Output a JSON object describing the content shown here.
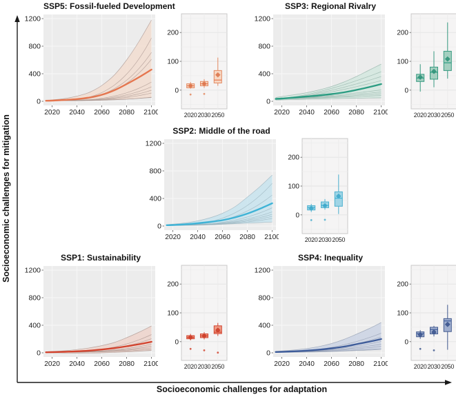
{
  "figure": {
    "y_axis_label": "Socioeconomic challenges for mitigation",
    "x_axis_label": "Socioeconomic challenges for adaptation"
  },
  "chart_data": [
    {
      "id": "ssp5",
      "title": "SSP5: Fossil-fueled Development",
      "position": "top-left",
      "colors": {
        "line": "#E5764F",
        "band": "#F2DDD0",
        "box_fill": "#F7D8C4",
        "box_stroke": "#E3885F",
        "run": "#A5928C",
        "mean": "#D96F45"
      },
      "line_chart": {
        "type": "line",
        "x": [
          2015,
          2020,
          2030,
          2040,
          2050,
          2060,
          2070,
          2080,
          2090,
          2100
        ],
        "median": [
          8,
          10,
          20,
          32,
          55,
          95,
          160,
          250,
          350,
          460
        ],
        "band_upper": [
          12,
          20,
          40,
          75,
          130,
          230,
          380,
          600,
          870,
          1180
        ],
        "band_lower": [
          5,
          6,
          8,
          10,
          14,
          18,
          24,
          32,
          42,
          55
        ],
        "runs_2100_endpoints": [
          920,
          710,
          610,
          280,
          210,
          160,
          120,
          60
        ],
        "run_start": 8,
        "shape_power": 3.2,
        "ylim": [
          -60,
          1260
        ],
        "yticks": [
          0,
          400,
          800,
          1200
        ],
        "xticks": [
          2020,
          2040,
          2060,
          2080,
          2100
        ]
      },
      "box_chart": {
        "type": "box",
        "categories": [
          "2020",
          "2030",
          "2050"
        ],
        "yticks": [
          0,
          100,
          200
        ],
        "ylim": [
          -65,
          265
        ],
        "boxes": [
          {
            "label": "2020",
            "low": 5,
            "q1": 8,
            "median": 15,
            "q3": 22,
            "high": 28,
            "mean": 15,
            "outliers": [
              -15
            ]
          },
          {
            "label": "2030",
            "low": 8,
            "q1": 15,
            "median": 22,
            "q3": 30,
            "high": 38,
            "mean": 22,
            "outliers": [
              -13
            ]
          },
          {
            "label": "2050",
            "low": 15,
            "q1": 25,
            "median": 35,
            "q3": 68,
            "high": 113,
            "mean": 53,
            "outliers": []
          }
        ]
      }
    },
    {
      "id": "ssp3",
      "title": "SSP3: Regional Rivalry",
      "position": "top-right",
      "colors": {
        "line": "#2B9C82",
        "band": "#D3E7DF",
        "box_fill": "#A4CFC0",
        "box_stroke": "#35997F",
        "run": "#8FAEA4",
        "mean": "#2B8F75"
      },
      "line_chart": {
        "type": "line",
        "x": [
          2015,
          2020,
          2030,
          2040,
          2050,
          2060,
          2070,
          2080,
          2090,
          2100
        ],
        "median": [
          35,
          40,
          55,
          70,
          85,
          105,
          130,
          165,
          205,
          250
        ],
        "band_upper": [
          55,
          70,
          95,
          125,
          165,
          215,
          280,
          360,
          450,
          540
        ],
        "band_lower": [
          18,
          20,
          25,
          30,
          34,
          38,
          42,
          45,
          48,
          50
        ],
        "runs_2100_endpoints": [
          430,
          360,
          300,
          165,
          135,
          110,
          85
        ],
        "run_start": 35,
        "shape_power": 1.5,
        "ylim": [
          -60,
          1260
        ],
        "yticks": [
          0,
          400,
          800,
          1200
        ],
        "xticks": [
          2020,
          2040,
          2060,
          2080,
          2100
        ]
      },
      "box_chart": {
        "type": "box",
        "categories": [
          "2020",
          "2030",
          "2050"
        ],
        "yticks": [
          0,
          100,
          200
        ],
        "ylim": [
          -65,
          265
        ],
        "boxes": [
          {
            "label": "2020",
            "low": -5,
            "q1": 30,
            "median": 42,
            "q3": 55,
            "high": 90,
            "mean": 45,
            "outliers": []
          },
          {
            "label": "2030",
            "low": 10,
            "q1": 38,
            "median": 62,
            "q3": 80,
            "high": 135,
            "mean": 65,
            "outliers": []
          },
          {
            "label": "2050",
            "low": 40,
            "q1": 68,
            "median": 95,
            "q3": 135,
            "high": 235,
            "mean": 108,
            "outliers": []
          }
        ]
      }
    },
    {
      "id": "ssp2",
      "title": "SSP2: Middle of the road",
      "position": "middle-center",
      "colors": {
        "line": "#3FB3D6",
        "band": "#C8E4EE",
        "box_fill": "#A0D5E6",
        "box_stroke": "#4AAFCE",
        "run": "#97AFB9",
        "mean": "#38A5C8"
      },
      "line_chart": {
        "type": "line",
        "x": [
          2015,
          2020,
          2030,
          2040,
          2050,
          2060,
          2070,
          2080,
          2090,
          2100
        ],
        "median": [
          12,
          15,
          25,
          40,
          60,
          85,
          125,
          180,
          250,
          330
        ],
        "band_upper": [
          20,
          28,
          45,
          75,
          120,
          185,
          280,
          420,
          570,
          740
        ],
        "band_lower": [
          5,
          6,
          8,
          12,
          18,
          26,
          34,
          42,
          50,
          58
        ],
        "runs_2100_endpoints": [
          620,
          450,
          265,
          205,
          170,
          140,
          110
        ],
        "run_start": 12,
        "shape_power": 2.8,
        "ylim": [
          -60,
          1260
        ],
        "yticks": [
          0,
          400,
          800,
          1200
        ],
        "xticks": [
          2020,
          2040,
          2060,
          2080,
          2100
        ]
      },
      "box_chart": {
        "type": "box",
        "categories": [
          "2020",
          "2030",
          "2050"
        ],
        "yticks": [
          0,
          100,
          200
        ],
        "ylim": [
          -65,
          265
        ],
        "boxes": [
          {
            "label": "2020",
            "low": 10,
            "q1": 17,
            "median": 25,
            "q3": 32,
            "high": 38,
            "mean": 23,
            "outliers": [
              -18
            ]
          },
          {
            "label": "2030",
            "low": 18,
            "q1": 25,
            "median": 33,
            "q3": 45,
            "high": 55,
            "mean": 32,
            "outliers": [
              -17
            ]
          },
          {
            "label": "2050",
            "low": 3,
            "q1": 30,
            "median": 58,
            "q3": 80,
            "high": 140,
            "mean": 65,
            "outliers": []
          }
        ]
      }
    },
    {
      "id": "ssp1",
      "title": "SSP1: Sustainability",
      "position": "bottom-left",
      "colors": {
        "line": "#D2432E",
        "band": "#EFD3CB",
        "box_fill": "#EE9B85",
        "box_stroke": "#D2432E",
        "run": "#A5908A",
        "mean": "#C93A26"
      },
      "line_chart": {
        "type": "line",
        "x": [
          2015,
          2020,
          2030,
          2040,
          2050,
          2060,
          2070,
          2080,
          2090,
          2100
        ],
        "median": [
          8,
          10,
          15,
          22,
          32,
          48,
          68,
          95,
          125,
          160
        ],
        "band_upper": [
          15,
          20,
          30,
          48,
          72,
          105,
          150,
          220,
          300,
          390
        ],
        "band_lower": [
          2,
          0,
          -3,
          -5,
          -3,
          0,
          6,
          14,
          24,
          35
        ],
        "runs_2100_endpoints": [
          265,
          205,
          125,
          95,
          72,
          50
        ],
        "run_start": 8,
        "shape_power": 2.8,
        "ylim": [
          -60,
          1260
        ],
        "yticks": [
          0,
          400,
          800,
          1200
        ],
        "xticks": [
          2020,
          2040,
          2060,
          2080,
          2100
        ]
      },
      "box_chart": {
        "type": "box",
        "categories": [
          "2020",
          "2030",
          "2050"
        ],
        "yticks": [
          0,
          100,
          200
        ],
        "ylim": [
          -65,
          265
        ],
        "boxes": [
          {
            "label": "2020",
            "low": 5,
            "q1": 10,
            "median": 15,
            "q3": 21,
            "high": 27,
            "mean": 15,
            "outliers": [
              -25
            ]
          },
          {
            "label": "2030",
            "low": 8,
            "q1": 14,
            "median": 20,
            "q3": 27,
            "high": 33,
            "mean": 20,
            "outliers": [
              -30
            ]
          },
          {
            "label": "2050",
            "low": 20,
            "q1": 28,
            "median": 33,
            "q3": 55,
            "high": 65,
            "mean": 40,
            "outliers": [
              -38
            ]
          }
        ]
      }
    },
    {
      "id": "ssp4",
      "title": "SSP4: Inequality",
      "position": "bottom-right",
      "colors": {
        "line": "#3E5C9A",
        "band": "#CBD4E4",
        "box_fill": "#9FAECE",
        "box_stroke": "#41598E",
        "run": "#8E99AE",
        "mean": "#36508C"
      },
      "line_chart": {
        "type": "line",
        "x": [
          2015,
          2020,
          2030,
          2040,
          2050,
          2060,
          2070,
          2080,
          2090,
          2100
        ],
        "median": [
          12,
          14,
          22,
          32,
          46,
          65,
          90,
          125,
          160,
          200
        ],
        "band_upper": [
          22,
          28,
          42,
          62,
          92,
          135,
          195,
          270,
          350,
          440
        ],
        "band_lower": [
          5,
          6,
          7,
          10,
          14,
          19,
          26,
          33,
          40,
          48
        ],
        "runs_2100_endpoints": [
          285,
          230,
          165,
          125,
          95,
          62
        ],
        "run_start": 12,
        "shape_power": 2.2,
        "ylim": [
          -60,
          1260
        ],
        "yticks": [
          0,
          400,
          800,
          1200
        ],
        "xticks": [
          2020,
          2040,
          2060,
          2080,
          2100
        ]
      },
      "box_chart": {
        "type": "box",
        "categories": [
          "2020",
          "2030",
          "2050"
        ],
        "yticks": [
          0,
          100,
          200
        ],
        "ylim": [
          -65,
          265
        ],
        "boxes": [
          {
            "label": "2020",
            "low": 10,
            "q1": 17,
            "median": 28,
            "q3": 34,
            "high": 40,
            "mean": 24,
            "outliers": [
              -25
            ]
          },
          {
            "label": "2030",
            "low": 18,
            "q1": 27,
            "median": 42,
            "q3": 50,
            "high": 55,
            "mean": 33,
            "outliers": [
              -30
            ]
          },
          {
            "label": "2050",
            "low": -28,
            "q1": 35,
            "median": 72,
            "q3": 80,
            "high": 128,
            "mean": 60,
            "outliers": []
          }
        ]
      }
    }
  ]
}
